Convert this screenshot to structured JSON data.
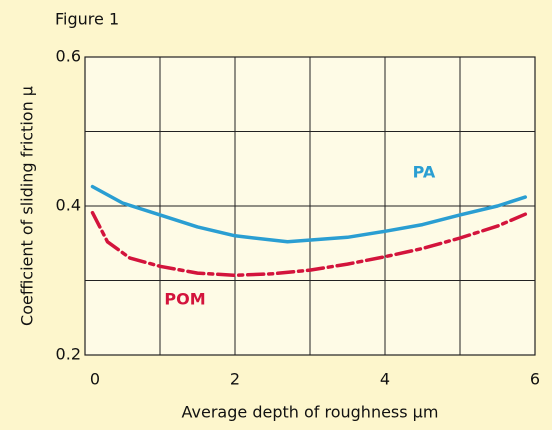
{
  "chart_data": {
    "type": "line",
    "title": "Figure 1",
    "x_label": "Average depth of roughness µm",
    "y_label": "Coefficient of sliding friction µ",
    "xlim": [
      0,
      6
    ],
    "ylim": [
      0.2,
      0.6
    ],
    "xticks": [
      0,
      2,
      4,
      6
    ],
    "yticks": [
      0.2,
      0.4,
      0.6
    ],
    "xgrid": [
      0,
      1,
      2,
      3,
      4,
      5,
      6
    ],
    "ygrid": [
      0.2,
      0.3,
      0.4,
      0.5,
      0.6
    ],
    "grid": true,
    "series": [
      {
        "name": "PA",
        "color": "#2a9ed2",
        "linestyle": "solid",
        "x": [
          0.1,
          0.5,
          1,
          1.5,
          2,
          2.7,
          3.5,
          4,
          4.5,
          5,
          5.5,
          5.87
        ],
        "values": [
          0.426,
          0.404,
          0.388,
          0.372,
          0.36,
          0.352,
          0.358,
          0.366,
          0.375,
          0.388,
          0.4,
          0.412
        ]
      },
      {
        "name": "POM",
        "color": "#d3143c",
        "linestyle": "dashdot",
        "x": [
          0.1,
          0.3,
          0.6,
          1,
          1.5,
          2,
          2.5,
          3,
          3.5,
          4,
          4.5,
          5,
          5.5,
          5.87
        ],
        "values": [
          0.391,
          0.352,
          0.33,
          0.319,
          0.31,
          0.307,
          0.309,
          0.314,
          0.322,
          0.332,
          0.343,
          0.357,
          0.373,
          0.389
        ]
      }
    ]
  }
}
